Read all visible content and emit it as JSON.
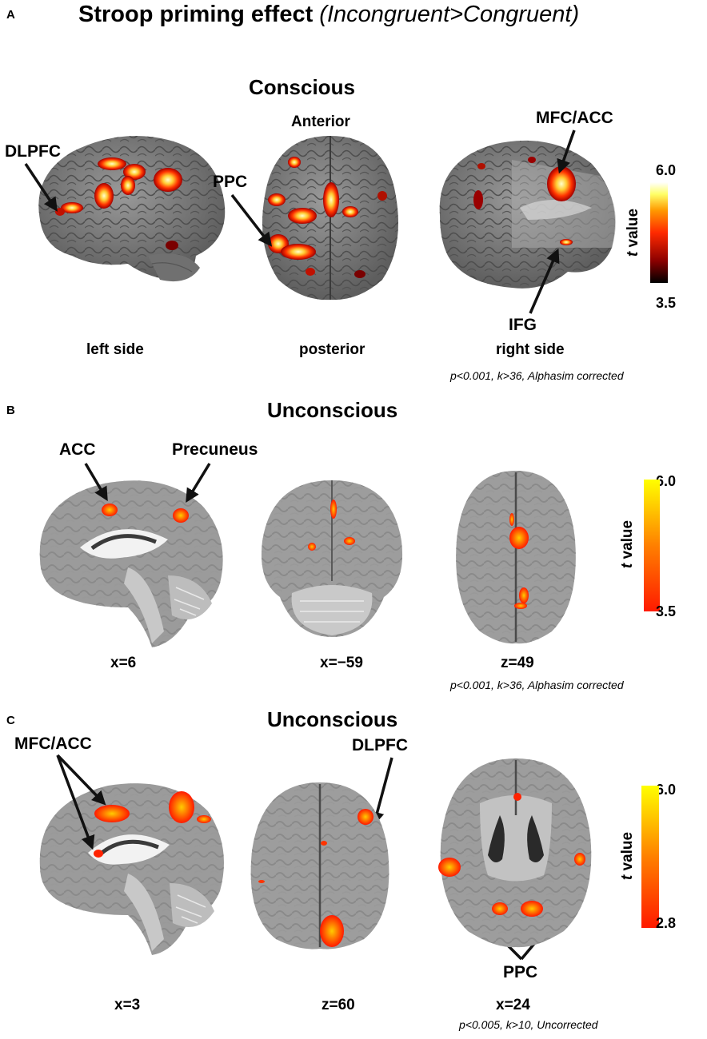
{
  "figure_title": {
    "main": "Stroop priming effect",
    "sub": "(Incongruent>Congruent)"
  },
  "panels": [
    {
      "letter": "A",
      "heading": "Conscious",
      "views": [
        "left side",
        "posterior",
        "right side"
      ],
      "view_top_label": "Anterior",
      "region_labels": {
        "dlpfc": "DLPFC",
        "ppc": "PPC",
        "mfc_acc": "MFC/ACC",
        "ifg": "IFG"
      },
      "colorbar": {
        "max": "6.0",
        "min": "3.5",
        "title_italic": "t",
        "title": "value",
        "colors": [
          "#000000",
          "#8b0000",
          "#ff2a00",
          "#ff9900",
          "#ffff66",
          "#ffffff"
        ]
      },
      "threshold": "p<0.001, k>36, Alphasim corrected"
    },
    {
      "letter": "B",
      "heading": "Unconscious",
      "views": [
        "x=6",
        "x=−59",
        "z=49"
      ],
      "region_labels": {
        "acc": "ACC",
        "precuneus": "Precuneus"
      },
      "colorbar": {
        "max": "6.0",
        "min": "3.5",
        "title_italic": "t",
        "title": "value",
        "colors": [
          "#ff1a00",
          "#ff8000",
          "#ffff00"
        ]
      },
      "threshold": "p<0.001, k>36, Alphasim corrected"
    },
    {
      "letter": "C",
      "heading": "Unconscious",
      "views": [
        "x=3",
        "z=60",
        "x=24"
      ],
      "region_labels": {
        "mfc_acc": "MFC/ACC",
        "dlpfc": "DLPFC",
        "ppc": "PPC"
      },
      "colorbar": {
        "max": "6.0",
        "min": "2.8",
        "title_italic": "t",
        "title": "value",
        "colors": [
          "#ff1a00",
          "#ff8000",
          "#ffff00"
        ]
      },
      "threshold": "p<0.005, k>10, Uncorrected"
    }
  ]
}
